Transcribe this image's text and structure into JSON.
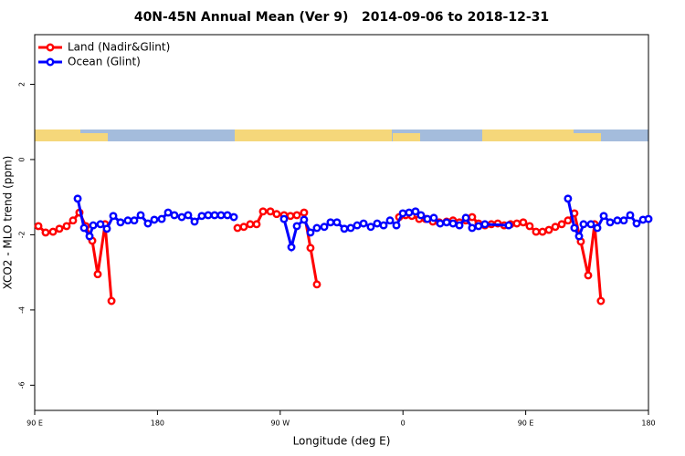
{
  "chart_data": {
    "type": "line",
    "title": "40N-45N Annual Mean (Ver 9)   2014-09-06 to 2018-12-31",
    "x_label": "Longitude (deg E)",
    "y_label": "XCO2 - MLO trend (ppm)",
    "xlim": [
      90,
      540
    ],
    "ylim": [
      -6.67,
      3.32
    ],
    "xticks": [
      {
        "value": 90,
        "label": "90 E"
      },
      180,
      {
        "value": 270,
        "label": "90 W"
      },
      {
        "value": 360,
        "label": "0"
      },
      {
        "value": 450,
        "label": "90 E"
      },
      {
        "value": 540,
        "label": "180"
      }
    ],
    "yticks": [
      2,
      0,
      -2,
      -4,
      -6
    ],
    "legend": "top-left",
    "series": [
      {
        "name": "Land (Nadir&Glint)",
        "color": "#ff0000",
        "x": [
          92.7,
          98.0,
          103.4,
          108.1,
          113.4,
          118.1,
          122.8,
          127.5,
          132.2,
          136.2,
          141.6,
          146.3,
          200,
          238.7,
          243.3,
          248.0,
          252.7,
          257.4,
          262.8,
          267.4,
          272.8,
          277.5,
          282.2,
          287.5,
          292.2,
          296.9,
          330,
          357.2,
          361.9,
          366.5,
          371.9,
          376.6,
          381.9,
          386.6,
          392.0,
          396.7,
          401.4,
          406.1,
          410.7,
          415.4,
          420.1,
          424.8,
          429.5,
          434.2,
          438.9,
          443.5,
          448.2,
          452.9,
          457.6,
          462.3,
          467.0,
          471.7,
          476.4,
          481.0,
          485.7,
          490.4,
          495.8,
          500.5,
          505.1
        ],
        "values": [
          -1.77,
          -1.94,
          -1.92,
          -1.84,
          -1.77,
          -1.62,
          -1.41,
          -1.77,
          -2.16,
          -3.05,
          -1.72,
          -3.76,
          null,
          -1.82,
          -1.79,
          -1.72,
          -1.72,
          -1.38,
          -1.38,
          -1.45,
          -1.48,
          -1.5,
          -1.48,
          -1.41,
          -2.35,
          -3.32,
          null,
          -1.53,
          -1.48,
          -1.5,
          -1.58,
          -1.58,
          -1.65,
          -1.67,
          -1.65,
          -1.62,
          -1.67,
          -1.62,
          -1.53,
          -1.7,
          -1.75,
          -1.72,
          -1.7,
          -1.75,
          -1.72,
          -1.7,
          -1.67,
          -1.77,
          -1.92,
          -1.92,
          -1.87,
          -1.79,
          -1.72,
          -1.62,
          -1.43,
          -2.18,
          -3.08,
          -1.72,
          -3.76
        ]
      },
      {
        "name": "Ocean (Glint)",
        "color": "#0000ff",
        "x": [
          121.5,
          126.2,
          130.2,
          132.9,
          138.2,
          142.9,
          147.6,
          152.9,
          158.3,
          163.0,
          167.7,
          173.0,
          177.7,
          183.1,
          187.8,
          192.4,
          197.8,
          202.5,
          207.2,
          212.5,
          217.2,
          221.9,
          226.6,
          231.3,
          236.0,
          250,
          272.8,
          278.2,
          282.2,
          287.5,
          292.2,
          296.9,
          302.3,
          306.9,
          311.6,
          317.0,
          321.7,
          326.4,
          331.1,
          336.4,
          341.1,
          345.8,
          350.5,
          355.2,
          359.9,
          364.5,
          369.2,
          373.2,
          377.9,
          382.6,
          387.3,
          392.0,
          396.7,
          401.4,
          406.1,
          410.7,
          415.4,
          420.1,
          437.5,
          460,
          481.0,
          485.7,
          489.1,
          492.4,
          497.8,
          502.5,
          507.2,
          511.9,
          517.2,
          521.9,
          526.6,
          531.3,
          536.0,
          540.0
        ],
        "values": [
          -1.04,
          -1.82,
          -2.04,
          -1.75,
          -1.72,
          -1.84,
          -1.5,
          -1.67,
          -1.62,
          -1.62,
          -1.48,
          -1.7,
          -1.6,
          -1.58,
          -1.41,
          -1.48,
          -1.53,
          -1.48,
          -1.65,
          -1.5,
          -1.48,
          -1.48,
          -1.48,
          -1.48,
          -1.53,
          null,
          -1.58,
          -2.33,
          -1.77,
          -1.6,
          -1.94,
          -1.82,
          -1.79,
          -1.67,
          -1.67,
          -1.84,
          -1.82,
          -1.75,
          -1.7,
          -1.79,
          -1.7,
          -1.75,
          -1.62,
          -1.75,
          -1.43,
          -1.41,
          -1.38,
          -1.48,
          -1.58,
          -1.55,
          -1.7,
          -1.67,
          -1.7,
          -1.75,
          -1.55,
          -1.82,
          -1.77,
          -1.72,
          -1.75,
          null,
          -1.04,
          -1.82,
          -2.04,
          -1.72,
          -1.72,
          -1.82,
          -1.5,
          -1.67,
          -1.62,
          -1.62,
          -1.48,
          -1.7,
          -1.6,
          -1.58
        ]
      }
    ]
  }
}
